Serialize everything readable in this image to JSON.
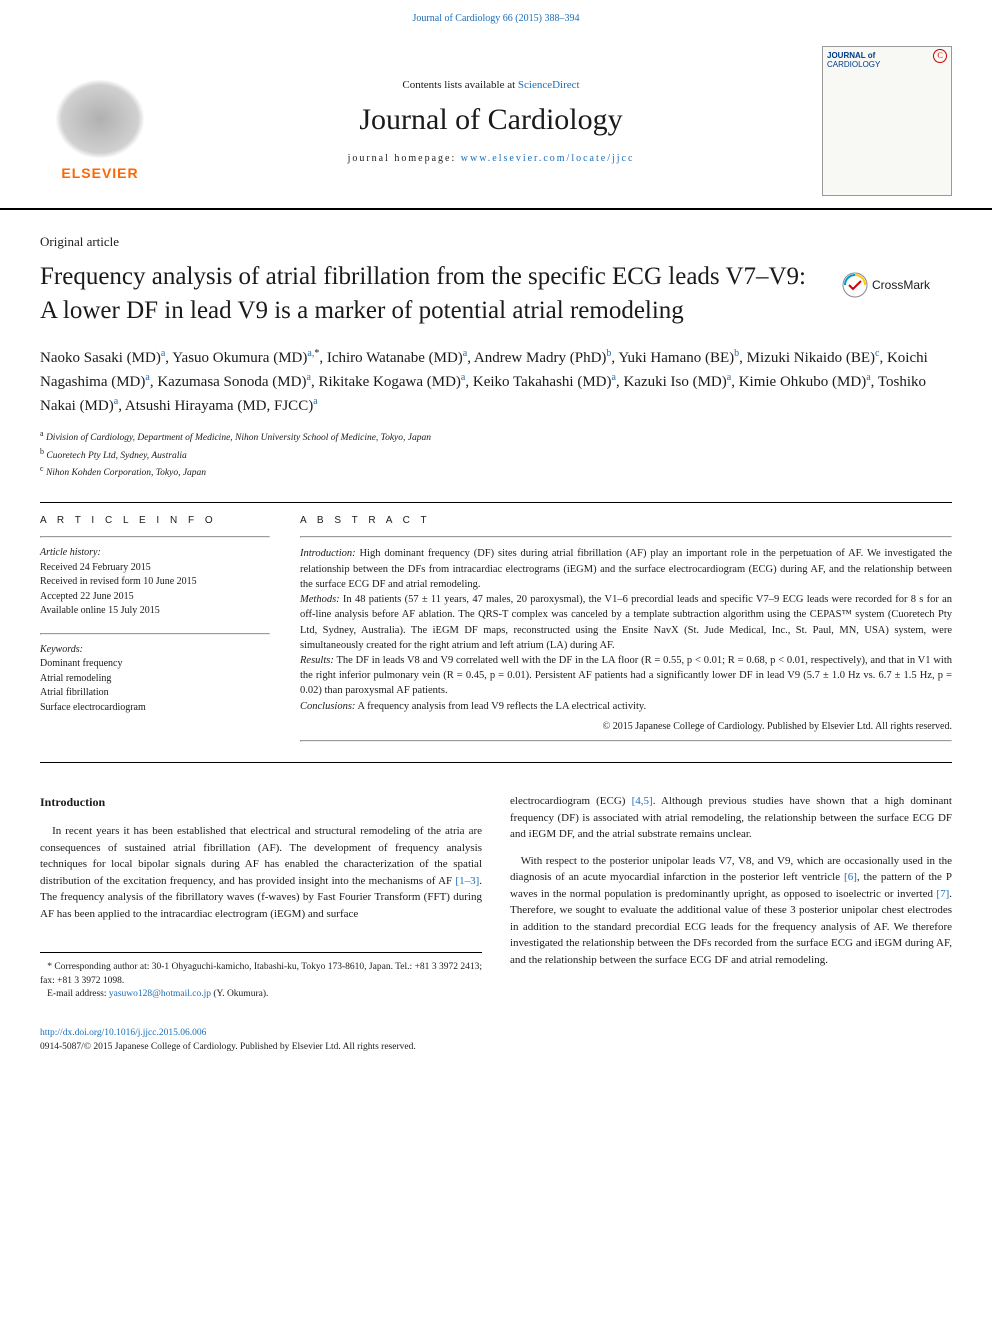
{
  "header": {
    "citation_link_text": "Journal of Cardiology 66 (2015) 388–394",
    "contents_text": "Contents lists available at ",
    "contents_link": "ScienceDirect",
    "journal_name": "Journal of Cardiology",
    "homepage_label": "journal homepage: ",
    "homepage_url": "www.elsevier.com/locate/jjcc",
    "publisher_brand": "ELSEVIER",
    "cover_title": "JOURNAL of",
    "cover_sub": "CARDIOLOGY"
  },
  "article": {
    "type": "Original article",
    "title": "Frequency analysis of atrial fibrillation from the specific ECG leads V7–V9: A lower DF in lead V9 is a marker of potential atrial remodeling",
    "crossmark": "CrossMark"
  },
  "authors_html": "Naoko Sasaki  (MD)<sup>a</sup>, Yasuo Okumura (MD)<sup>a,</sup><sup class='ast'>*</sup>, Ichiro Watanabe (MD)<sup>a</sup>, Andrew Madry (PhD)<sup>b</sup>, Yuki Hamano (BE)<sup>b</sup>, Mizuki Nikaido (BE)<sup>c</sup>, Koichi Nagashima (MD)<sup>a</sup>, Kazumasa Sonoda (MD)<sup>a</sup>, Rikitake Kogawa (MD)<sup>a</sup>, Keiko Takahashi (MD)<sup>a</sup>, Kazuki Iso (MD)<sup>a</sup>, Kimie Ohkubo (MD)<sup>a</sup>, Toshiko Nakai (MD)<sup>a</sup>, Atsushi Hirayama (MD, FJCC)<sup>a</sup>",
  "affiliations": [
    {
      "sup": "a",
      "text": "Division of Cardiology, Department of Medicine, Nihon University School of Medicine, Tokyo, Japan"
    },
    {
      "sup": "b",
      "text": "Cuoretech Pty Ltd, Sydney, Australia"
    },
    {
      "sup": "c",
      "text": "Nihon Kohden Corporation, Tokyo, Japan"
    }
  ],
  "info": {
    "heading": "A R T I C L E   I N F O",
    "history_label": "Article history:",
    "history": [
      "Received 24 February 2015",
      "Received in revised form 10 June 2015",
      "Accepted 22 June 2015",
      "Available online 15 July 2015"
    ],
    "keywords_label": "Keywords:",
    "keywords": [
      "Dominant frequency",
      "Atrial remodeling",
      "Atrial fibrillation",
      "Surface electrocardiogram"
    ]
  },
  "abstract": {
    "heading": "A B S T R A C T",
    "intro_label": "Introduction:",
    "intro": " High dominant frequency (DF) sites during atrial fibrillation (AF) play an important role in the perpetuation of AF. We investigated the relationship between the DFs from intracardiac electrograms (iEGM) and the surface electrocardiogram (ECG) during AF, and the relationship between the surface ECG DF and atrial remodeling.",
    "methods_label": "Methods:",
    "methods": " In 48 patients (57 ± 11 years, 47 males, 20 paroxysmal), the V1–6 precordial leads and specific V7–9 ECG leads were recorded for 8 s for an off-line analysis before AF ablation. The QRS-T complex was canceled by a template subtraction algorithm using the CEPAS™ system (Cuoretech Pty Ltd, Sydney, Australia). The iEGM DF maps, reconstructed using the Ensite NavX (St. Jude Medical, Inc., St. Paul, MN, USA) system, were simultaneously created for the right atrium and left atrium (LA) during AF.",
    "results_label": "Results:",
    "results": " The DF in leads V8 and V9 correlated well with the DF in the LA floor (R = 0.55, p < 0.01; R = 0.68, p < 0.01, respectively), and that in V1 with the right inferior pulmonary vein (R = 0.45, p = 0.01). Persistent AF patients had a significantly lower DF in lead V9 (5.7 ± 1.0 Hz vs. 6.7 ± 1.5 Hz, p = 0.02) than paroxysmal AF patients.",
    "conclusions_label": "Conclusions:",
    "conclusions": " A frequency analysis from lead V9 reflects the LA electrical activity.",
    "copyright": "© 2015 Japanese College of Cardiology. Published by Elsevier Ltd. All rights reserved."
  },
  "body": {
    "section_heading": "Introduction",
    "col1_p1a": "In recent years it has been established that electrical and structural remodeling of the atria are consequences of sustained atrial fibrillation (AF). The development of frequency analysis techniques for local bipolar signals during AF has enabled the characterization of the spatial distribution of the excitation frequency, and has provided insight into the mechanisms of AF ",
    "ref1": "[1–3]",
    "col1_p1b": ". The frequency analysis of the fibrillatory waves (f-waves) by Fast Fourier Transform (FFT) during AF has been applied to the intracardiac electrogram (iEGM) and surface",
    "col2_p1a": "electrocardiogram (ECG) ",
    "ref2": "[4,5]",
    "col2_p1b": ". Although previous studies have shown that a high dominant frequency (DF) is associated with atrial remodeling, the relationship between the surface ECG DF and iEGM DF, and the atrial substrate remains unclear.",
    "col2_p2a": "With respect to the posterior unipolar leads V7, V8, and V9, which are occasionally used in the diagnosis of an acute myocardial infarction in the posterior left ventricle ",
    "ref3": "[6]",
    "col2_p2b": ", the pattern of the P waves in the normal population is predominantly upright, as opposed to isoelectric or inverted ",
    "ref4": "[7]",
    "col2_p2c": ". Therefore, we sought to evaluate the additional value of these 3 posterior unipolar chest electrodes in addition to the standard precordial ECG leads for the frequency analysis of AF. We therefore investigated the relationship between the DFs recorded from the surface ECG and iEGM during AF, and the relationship between the surface ECG DF and atrial remodeling."
  },
  "footnote": {
    "star": "*",
    "corr_a": " Corresponding author at: 30-1 Ohyaguchi-kamicho, Itabashi-ku, Tokyo 173-8610, Japan. Tel.: +81 3 3972 2413; fax: +81 3 3972 1098.",
    "email_label": "E-mail address: ",
    "email": "yasuwo128@hotmail.co.jp",
    "email_suffix": " (Y. Okumura)."
  },
  "footer": {
    "doi": "http://dx.doi.org/10.1016/j.jjcc.2015.06.006",
    "issn_line": "0914-5087/© 2015 Japanese College of Cardiology. Published by Elsevier Ltd. All rights reserved."
  },
  "colors": {
    "link": "#1a6eb8",
    "brand": "#ff6600",
    "text": "#1a1a1a"
  }
}
